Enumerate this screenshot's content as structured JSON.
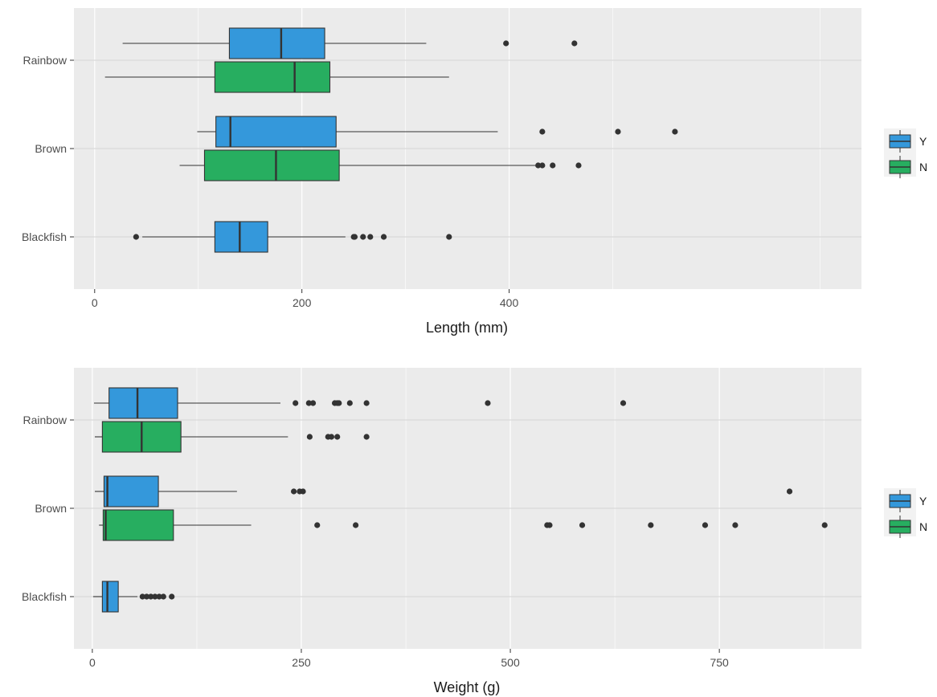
{
  "colors": {
    "Y": "#3498db",
    "N": "#27ae60",
    "panel_background": "#ebebeb",
    "grid": "#ffffff",
    "outline": "#333333",
    "outlier": "#333333"
  },
  "chart_data": [
    {
      "type": "boxplot",
      "orientation": "horizontal",
      "xlabel": "Length (mm)",
      "categories": [
        "Rainbow",
        "Brown",
        "Blackfish"
      ],
      "xlim": [
        -20,
        740
      ],
      "xticks": [
        0,
        200,
        400
      ],
      "tick_labels": [
        "0",
        "200",
        "400"
      ],
      "legend": {
        "position": "right",
        "entries": [
          "Y",
          "N"
        ]
      },
      "series": [
        {
          "category": "Rainbow",
          "group": "Y",
          "whisker_low": 27,
          "q1": 130,
          "median": 180,
          "q3": 222,
          "whisker_high": 320,
          "outliers": [
            397,
            463
          ]
        },
        {
          "category": "Rainbow",
          "group": "N",
          "whisker_low": 10,
          "q1": 116,
          "median": 193,
          "q3": 227,
          "whisker_high": 342,
          "outliers": []
        },
        {
          "category": "Brown",
          "group": "Y",
          "whisker_low": 99,
          "q1": 117,
          "median": 131,
          "q3": 233,
          "whisker_high": 389,
          "outliers": [
            432,
            505,
            560
          ]
        },
        {
          "category": "Brown",
          "group": "N",
          "whisker_low": 82,
          "q1": 106,
          "median": 175,
          "q3": 236,
          "whisker_high": 428,
          "outliers": [
            428,
            432,
            442,
            467
          ]
        },
        {
          "category": "Blackfish",
          "group": "Y",
          "whisker_low": 46,
          "q1": 116,
          "median": 140,
          "q3": 167,
          "whisker_high": 242,
          "outliers": [
            40,
            250,
            251,
            259,
            266,
            279,
            342
          ]
        }
      ]
    },
    {
      "type": "boxplot",
      "orientation": "horizontal",
      "xlabel": "Weight (g)",
      "categories": [
        "Rainbow",
        "Brown",
        "Blackfish"
      ],
      "xlim": [
        -22,
        920
      ],
      "xticks": [
        0,
        250,
        500,
        750
      ],
      "tick_labels": [
        "0",
        "250",
        "500",
        "750"
      ],
      "legend": {
        "position": "right",
        "entries": [
          "Y",
          "N"
        ]
      },
      "series": [
        {
          "category": "Rainbow",
          "group": "Y",
          "whisker_low": 2,
          "q1": 20,
          "median": 54,
          "q3": 102,
          "whisker_high": 225,
          "outliers": [
            243,
            259,
            264,
            290,
            293,
            295,
            308,
            328,
            473,
            635
          ]
        },
        {
          "category": "Rainbow",
          "group": "N",
          "whisker_low": 3,
          "q1": 12,
          "median": 59,
          "q3": 106,
          "whisker_high": 234,
          "outliers": [
            260,
            282,
            286,
            293,
            328
          ]
        },
        {
          "category": "Brown",
          "group": "Y",
          "whisker_low": 3,
          "q1": 14,
          "median": 18,
          "q3": 79,
          "whisker_high": 173,
          "outliers": [
            241,
            248,
            252,
            834
          ]
        },
        {
          "category": "Brown",
          "group": "N",
          "whisker_low": 8,
          "q1": 13,
          "median": 16,
          "q3": 97,
          "whisker_high": 190,
          "outliers": [
            269,
            315,
            544,
            547,
            586,
            668,
            733,
            769,
            876
          ]
        },
        {
          "category": "Blackfish",
          "group": "Y",
          "whisker_low": 1,
          "q1": 12,
          "median": 18,
          "q3": 31,
          "whisker_high": 54,
          "outliers": [
            60,
            65,
            70,
            75,
            80,
            85,
            95
          ]
        }
      ]
    }
  ]
}
